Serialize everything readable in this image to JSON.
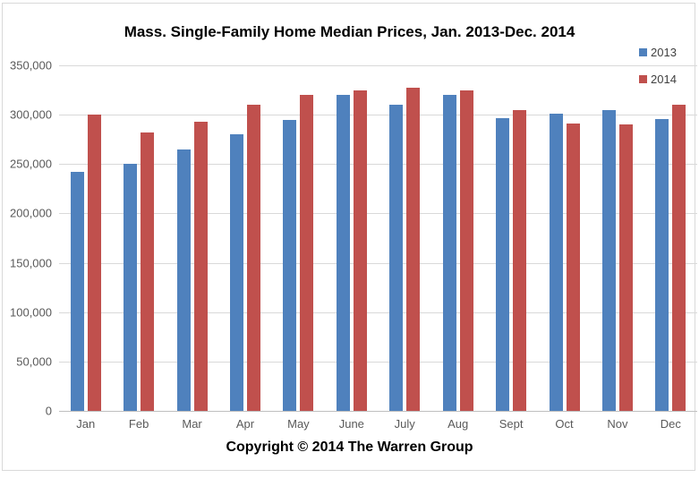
{
  "page": {
    "copyright": "Copyright © 2014 The Warren Group"
  },
  "chart_data": {
    "type": "bar",
    "title": "Mass. Single-Family Home Median Prices, Jan. 2013-Dec. 2014",
    "categories": [
      "Jan",
      "Feb",
      "Mar",
      "Apr",
      "May",
      "June",
      "July",
      "Aug",
      "Sept",
      "Oct",
      "Nov",
      "Dec"
    ],
    "series": [
      {
        "name": "2013",
        "color": "#4F81BD",
        "values": [
          242500,
          250000,
          265000,
          280000,
          295000,
          320000,
          310000,
          320000,
          296500,
          301000,
          305000,
          296000
        ]
      },
      {
        "name": "2014",
        "color": "#C0504D",
        "values": [
          300000,
          282000,
          292500,
          310000,
          320000,
          325000,
          327500,
          325000,
          305000,
          291000,
          290000,
          310000
        ]
      }
    ],
    "ylim": [
      0,
      350000
    ],
    "ytick_interval": 50000,
    "ytick_labels": [
      "350,000",
      "300,000",
      "250,000",
      "200,000",
      "150,000",
      "100,000",
      "50,000",
      "0"
    ],
    "grid": true,
    "legend_position": "top-right",
    "xlabel": "",
    "ylabel": ""
  },
  "colors": {
    "gridline": "#D9D9D9",
    "axis_line": "#BFBFBF",
    "axis_text": "#595959",
    "title_text": "#000000",
    "frame_border": "#D9D9D9"
  }
}
